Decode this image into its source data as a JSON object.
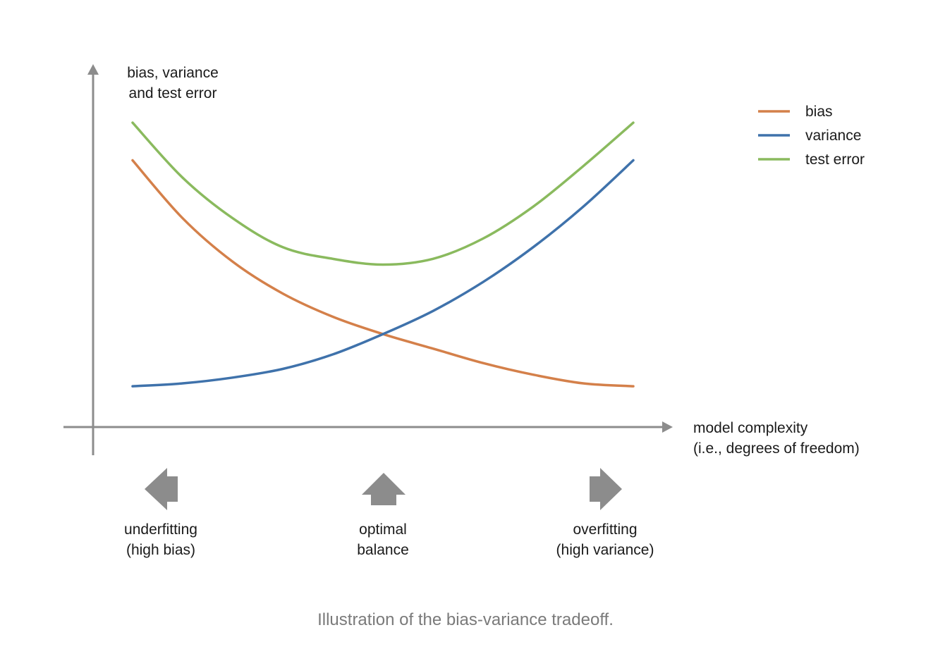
{
  "chart_data": {
    "type": "line",
    "title": "",
    "ylabel": "bias, variance\nand test error",
    "xlabel": "model complexity\n(i.e., degrees of freedom)",
    "xlim": [
      0,
      1
    ],
    "ylim": [
      0,
      1
    ],
    "grid": false,
    "legend_position": "top-right",
    "x": [
      0,
      0.1,
      0.2,
      0.3,
      0.4,
      0.5,
      0.6,
      0.7,
      0.8,
      0.9,
      1.0
    ],
    "series": [
      {
        "name": "bias",
        "color": "#d4804a",
        "values": [
          0.86,
          0.66,
          0.51,
          0.4,
          0.32,
          0.26,
          0.21,
          0.16,
          0.12,
          0.09,
          0.08
        ]
      },
      {
        "name": "variance",
        "color": "#3f72ab",
        "values": [
          0.08,
          0.09,
          0.11,
          0.14,
          0.19,
          0.26,
          0.34,
          0.44,
          0.56,
          0.7,
          0.86
        ]
      },
      {
        "name": "test error",
        "color": "#8aba5e",
        "values": [
          0.99,
          0.8,
          0.66,
          0.56,
          0.52,
          0.5,
          0.52,
          0.59,
          0.7,
          0.84,
          0.99
        ]
      }
    ],
    "annotations": [
      {
        "id": "underfitting",
        "text": "underfitting\n(high bias)",
        "direction": "left",
        "x": 0.06
      },
      {
        "id": "optimal",
        "text": "optimal\nbalance",
        "direction": "up",
        "x": 0.5
      },
      {
        "id": "overfitting",
        "text": "overfitting\n(high variance)",
        "direction": "right",
        "x": 0.94
      }
    ]
  },
  "caption": "Illustration of the bias-variance tradeoff.",
  "colors": {
    "axis": "#8c8c8c",
    "arrow": "#8c8c8c",
    "caption": "#7a7a7a"
  }
}
